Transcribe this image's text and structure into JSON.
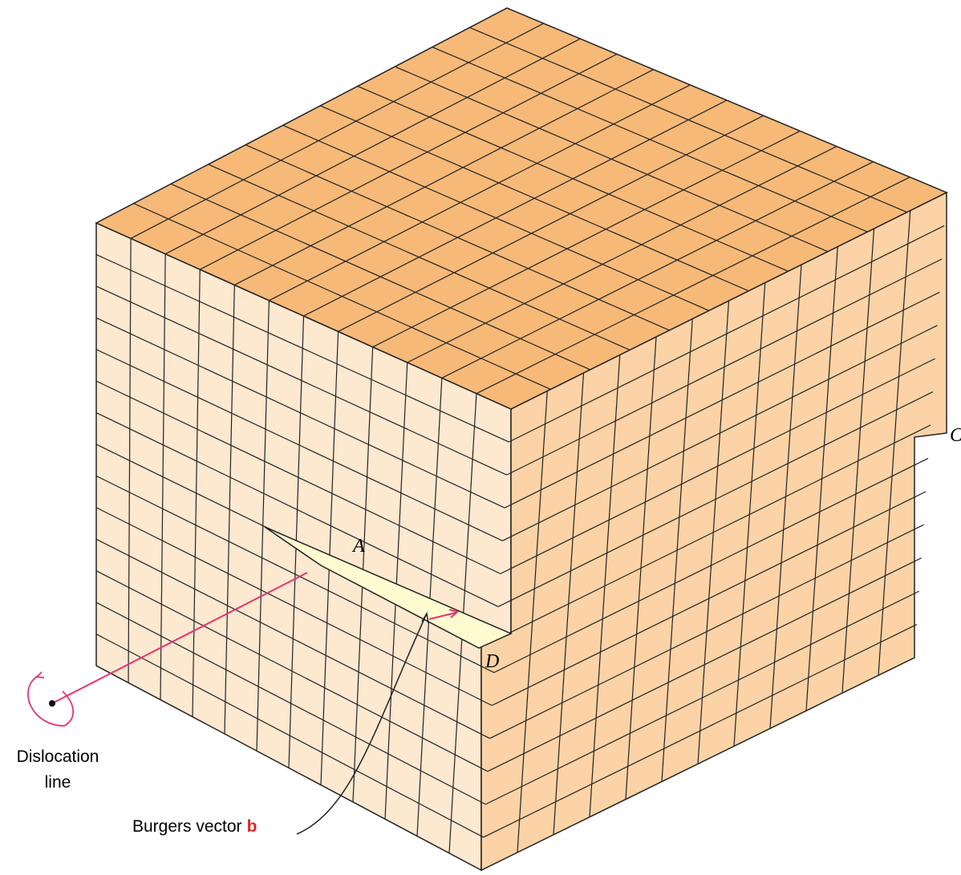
{
  "labels": {
    "A": "A",
    "C": "C",
    "D": "D"
  },
  "dislocation_line": [
    "Dislocation",
    "line"
  ],
  "burgers_vector": {
    "text": "Burgers vector",
    "symbol": "b"
  }
}
